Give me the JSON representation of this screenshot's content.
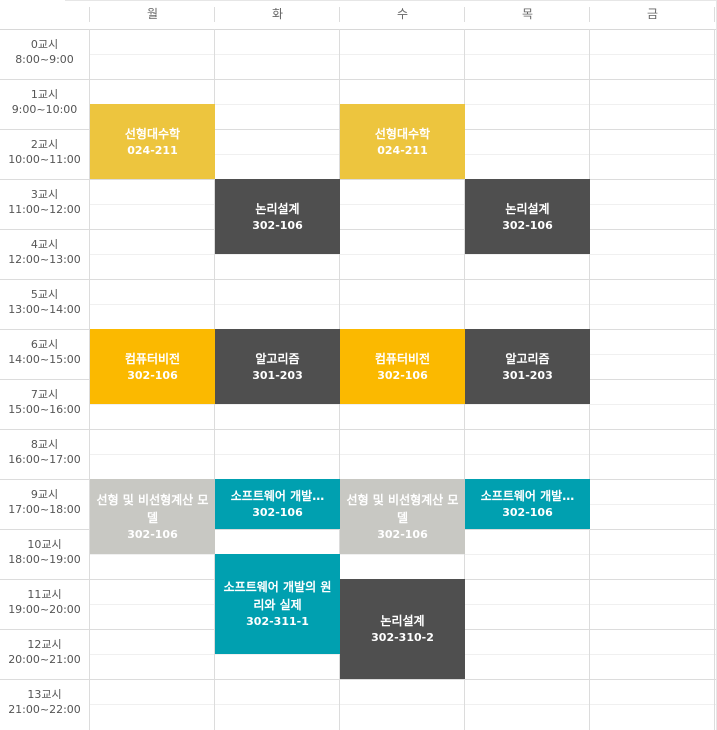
{
  "days": [
    "월",
    "화",
    "수",
    "목",
    "금"
  ],
  "periods": [
    {
      "name": "0교시",
      "time": "8:00~9:00"
    },
    {
      "name": "1교시",
      "time": "9:00~10:00"
    },
    {
      "name": "2교시",
      "time": "10:00~11:00"
    },
    {
      "name": "3교시",
      "time": "11:00~12:00"
    },
    {
      "name": "4교시",
      "time": "12:00~13:00"
    },
    {
      "name": "5교시",
      "time": "13:00~14:00"
    },
    {
      "name": "6교시",
      "time": "14:00~15:00"
    },
    {
      "name": "7교시",
      "time": "15:00~16:00"
    },
    {
      "name": "8교시",
      "time": "16:00~17:00"
    },
    {
      "name": "9교시",
      "time": "17:00~18:00"
    },
    {
      "name": "10교시",
      "time": "18:00~19:00"
    },
    {
      "name": "11교시",
      "time": "19:00~20:00"
    },
    {
      "name": "12교시",
      "time": "20:00~21:00"
    },
    {
      "name": "13교시",
      "time": "21:00~22:00"
    }
  ],
  "colors": {
    "yellow": "#EDC53E",
    "amber": "#FBB900",
    "dark": "#4F4F4F",
    "teal": "#00A0B0",
    "light_gray": "#C8C8C3"
  },
  "classes": [
    {
      "day": 0,
      "start": 1.5,
      "end": 3.0,
      "name": "선형대수학",
      "room": "024-211",
      "color": "yellow"
    },
    {
      "day": 2,
      "start": 1.5,
      "end": 3.0,
      "name": "선형대수학",
      "room": "024-211",
      "color": "yellow"
    },
    {
      "day": 1,
      "start": 3.0,
      "end": 4.5,
      "name": "논리설계",
      "room": "302-106",
      "color": "dark"
    },
    {
      "day": 3,
      "start": 3.0,
      "end": 4.5,
      "name": "논리설계",
      "room": "302-106",
      "color": "dark"
    },
    {
      "day": 0,
      "start": 6.0,
      "end": 7.5,
      "name": "컴퓨터비전",
      "room": "302-106",
      "color": "amber"
    },
    {
      "day": 2,
      "start": 6.0,
      "end": 7.5,
      "name": "컴퓨터비전",
      "room": "302-106",
      "color": "amber"
    },
    {
      "day": 1,
      "start": 6.0,
      "end": 7.5,
      "name": "알고리즘",
      "room": "301-203",
      "color": "dark"
    },
    {
      "day": 3,
      "start": 6.0,
      "end": 7.5,
      "name": "알고리즘",
      "room": "301-203",
      "color": "dark"
    },
    {
      "day": 0,
      "start": 9.0,
      "end": 10.5,
      "name": "선형 및 비선형계산 모델",
      "room": "302-106",
      "color": "light_gray"
    },
    {
      "day": 2,
      "start": 9.0,
      "end": 10.5,
      "name": "선형 및 비선형계산 모델",
      "room": "302-106",
      "color": "light_gray"
    },
    {
      "day": 1,
      "start": 9.0,
      "end": 10.0,
      "name": "소프트웨어 개발…",
      "room": "302-106",
      "color": "teal"
    },
    {
      "day": 3,
      "start": 9.0,
      "end": 10.0,
      "name": "소프트웨어 개발…",
      "room": "302-106",
      "color": "teal"
    },
    {
      "day": 1,
      "start": 10.5,
      "end": 12.5,
      "name": "소프트웨어 개발의 원리와 실제",
      "room": "302-311-1",
      "color": "teal"
    },
    {
      "day": 2,
      "start": 11.0,
      "end": 13.0,
      "name": "논리설계",
      "room": "302-310-2",
      "color": "dark"
    }
  ]
}
